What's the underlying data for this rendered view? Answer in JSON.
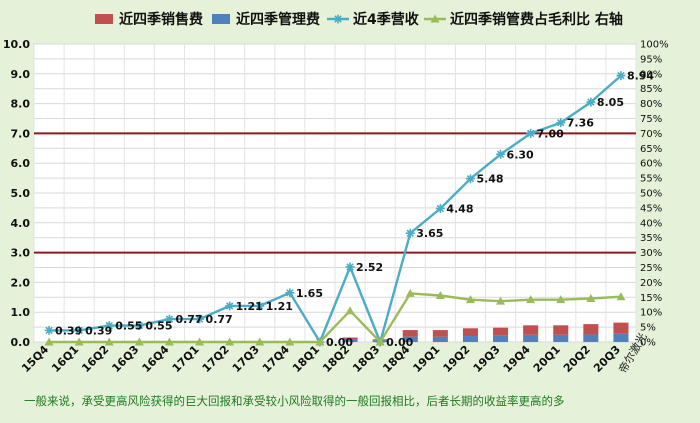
{
  "chart_data": {
    "type": "bar",
    "categories": [
      "15Q4",
      "16Q1",
      "16Q2",
      "16Q3",
      "16Q4",
      "17Q1",
      "17Q2",
      "17Q3",
      "17Q4",
      "18Q1",
      "18Q2",
      "18Q3",
      "18Q4",
      "19Q1",
      "19Q2",
      "19Q3",
      "19Q4",
      "20Q1",
      "20Q2",
      "20Q3"
    ],
    "series": [
      {
        "name": "近四季销售费",
        "type": "bar",
        "stack": "fees",
        "axis": "left",
        "color": "#c0504d",
        "values": [
          0,
          0,
          0,
          0,
          0,
          0,
          0,
          0,
          0,
          0,
          0.05,
          0.03,
          0.22,
          0.22,
          0.26,
          0.27,
          0.32,
          0.32,
          0.35,
          0.37
        ]
      },
      {
        "name": "近四季管理费",
        "type": "bar",
        "stack": "fees",
        "axis": "left",
        "color": "#4f81bd",
        "values": [
          0,
          0,
          0,
          0,
          0,
          0,
          0,
          0,
          0,
          0,
          0.1,
          0.06,
          0.18,
          0.18,
          0.2,
          0.21,
          0.24,
          0.24,
          0.25,
          0.28
        ]
      },
      {
        "name": "近4季营收",
        "type": "line",
        "axis": "left",
        "color": "#4bacc6",
        "marker": "star",
        "values": [
          0.39,
          0.39,
          0.55,
          0.55,
          0.77,
          0.77,
          1.21,
          1.21,
          1.65,
          0.0,
          2.52,
          0.0,
          3.65,
          4.48,
          5.48,
          6.3,
          7.0,
          7.36,
          8.05,
          8.94
        ],
        "labels": [
          "0.39",
          "0.39",
          "0.55",
          "0.55",
          "0.77",
          "0.77",
          "1.21",
          "1.21",
          "1.65",
          "0.00",
          "2.52",
          "0.00",
          "3.65",
          "4.48",
          "5.48",
          "6.30",
          "7.00",
          "7.36",
          "8.05",
          "8.94"
        ]
      },
      {
        "name": "近四季销管费占毛利比 右轴",
        "type": "line",
        "axis": "right",
        "color": "#9bbb59",
        "marker": "triangle",
        "values": [
          0,
          0,
          0,
          0,
          0,
          0,
          0,
          0,
          0,
          0,
          10.5,
          0,
          16.3,
          15.6,
          14.2,
          13.7,
          14.2,
          14.2,
          14.6,
          15.2
        ]
      }
    ],
    "y_left": {
      "min": 0,
      "max": 10,
      "ticks": [
        "0.0",
        "1.0",
        "2.0",
        "3.0",
        "4.0",
        "5.0",
        "6.0",
        "7.0",
        "8.0",
        "9.0",
        "10.0"
      ]
    },
    "y_right": {
      "min": 0,
      "max": 100,
      "ticks": [
        "0%",
        "5%",
        "10%",
        "15%",
        "20%",
        "25%",
        "30%",
        "35%",
        "40%",
        "45%",
        "50%",
        "55%",
        "60%",
        "65%",
        "70%",
        "75%",
        "80%",
        "85%",
        "90%",
        "95%",
        "100%"
      ]
    },
    "reference_lines": [
      {
        "axis": "left",
        "value": 7.0,
        "color": "#8b1a1a"
      },
      {
        "axis": "left",
        "value": 3.0,
        "color": "#8b1a1a"
      }
    ],
    "grid": true,
    "legend_position": "top",
    "watermark": "帝尔激光",
    "footnote": "一般来说，承受更高风险获得的巨大回报和承受较小风险取得的一般回报相比，后者长期的收益率更高的多"
  }
}
